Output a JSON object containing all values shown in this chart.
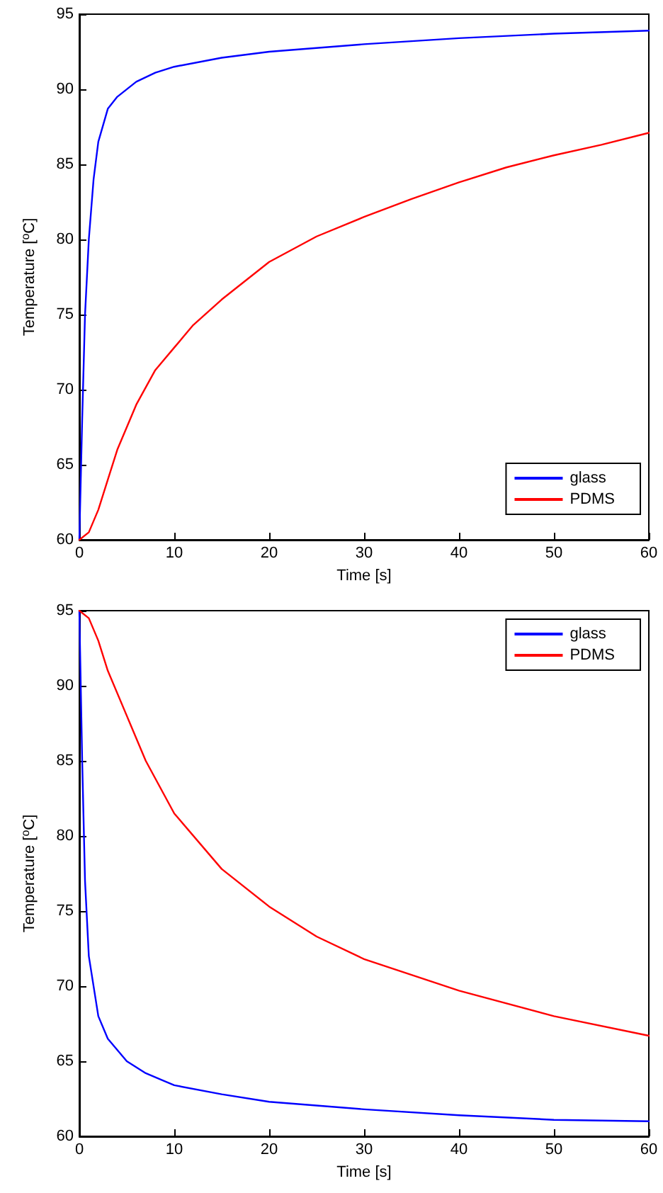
{
  "chart_data": [
    {
      "type": "line",
      "xlabel": "Time [s]",
      "ylabel": "Temperature [$^{o}$C]",
      "xlim": [
        0,
        60
      ],
      "ylim": [
        60,
        95
      ],
      "xticks": [
        0,
        10,
        20,
        30,
        40,
        50,
        60
      ],
      "yticks": [
        60,
        65,
        70,
        75,
        80,
        85,
        90,
        95
      ],
      "grid": false,
      "legend": "bottom right",
      "marker": "none",
      "line_style": "solid",
      "series": [
        {
          "name": "glass",
          "color": "#0000ff",
          "x": [
            0,
            0.3,
            0.6,
            1,
            1.5,
            2,
            3,
            4,
            6,
            8,
            10,
            15,
            20,
            30,
            40,
            50,
            60
          ],
          "values": [
            60,
            68,
            75,
            80,
            84,
            86.5,
            88.7,
            89.5,
            90.5,
            91.1,
            91.5,
            92.1,
            92.5,
            93,
            93.4,
            93.7,
            93.9
          ]
        },
        {
          "name": "PDMS",
          "color": "#ff0000",
          "x": [
            0,
            1,
            2,
            3,
            4,
            6,
            8,
            10,
            12,
            15,
            20,
            25,
            30,
            35,
            40,
            45,
            50,
            55,
            60
          ],
          "values": [
            60,
            60.5,
            62,
            64,
            66,
            69,
            71.3,
            72.8,
            74.3,
            76,
            78.5,
            80.2,
            81.5,
            82.7,
            83.8,
            84.8,
            85.6,
            86.3,
            87.1
          ]
        }
      ]
    },
    {
      "type": "line",
      "xlabel": "Time [s]",
      "ylabel": "Temperature [$^{o}$C]",
      "xlim": [
        0,
        60
      ],
      "ylim": [
        60,
        95
      ],
      "xticks": [
        0,
        10,
        20,
        30,
        40,
        50,
        60
      ],
      "yticks": [
        60,
        65,
        70,
        75,
        80,
        85,
        90,
        95
      ],
      "grid": false,
      "legend": "top right",
      "marker": "none",
      "line_style": "solid",
      "series": [
        {
          "name": "glass",
          "color": "#0000ff",
          "x": [
            0,
            0.3,
            0.6,
            1,
            2,
            3,
            5,
            7,
            10,
            15,
            20,
            30,
            40,
            50,
            60
          ],
          "values": [
            95,
            85,
            77,
            72,
            68,
            66.5,
            65,
            64.2,
            63.4,
            62.8,
            62.3,
            61.8,
            61.4,
            61.1,
            61
          ]
        },
        {
          "name": "PDMS",
          "color": "#ff0000",
          "x": [
            0,
            1,
            2,
            3,
            5,
            7,
            10,
            15,
            20,
            25,
            30,
            40,
            50,
            60
          ],
          "values": [
            95,
            94.5,
            93,
            91,
            88,
            85,
            81.5,
            77.8,
            75.3,
            73.3,
            71.8,
            69.7,
            68,
            66.7
          ]
        }
      ]
    }
  ]
}
